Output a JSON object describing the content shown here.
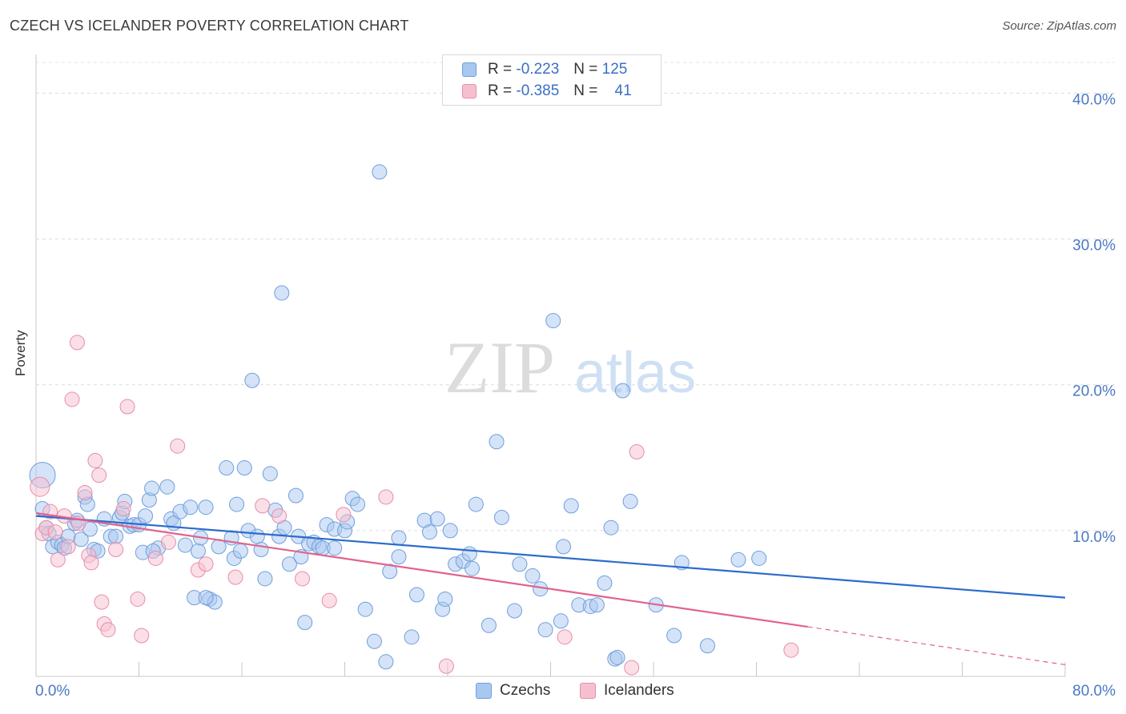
{
  "title": "CZECH VS ICELANDER POVERTY CORRELATION CHART",
  "source": "Source: ZipAtlas.com",
  "watermark": {
    "zip": "ZIP",
    "atlas": "atlas"
  },
  "legend": {
    "rows": [
      {
        "r_label": "R =",
        "r_value": "-0.223",
        "n_label": "N =",
        "n_value": "125"
      },
      {
        "r_label": "R =",
        "r_value": "-0.385",
        "n_label": "N =",
        "n_value": "41"
      }
    ]
  },
  "bottom_legend": {
    "czechs": "Czechs",
    "icelanders": "Icelanders"
  },
  "colors": {
    "czech_fill": "#a9c8f0",
    "czech_stroke": "#6f9fdc",
    "czech_line": "#2b6ccc",
    "iceland_fill": "#f6bfd0",
    "iceland_stroke": "#e78daa",
    "iceland_line": "#e0628f",
    "axis_text": "#4a78c2"
  },
  "chart_data": {
    "type": "scatter",
    "title": "CZECH VS ICELANDER POVERTY CORRELATION CHART",
    "xlabel": "",
    "ylabel": "Poverty",
    "xlim": [
      0,
      80
    ],
    "ylim": [
      0,
      42
    ],
    "x_tick_labels": [
      "0.0%",
      "80.0%"
    ],
    "y_ticks": [
      10,
      20,
      30,
      40
    ],
    "y_tick_labels": [
      "10.0%",
      "20.0%",
      "30.0%",
      "40.0%"
    ],
    "series": [
      {
        "name": "Czechs",
        "R": -0.223,
        "N": 125,
        "trend": {
          "x": [
            0,
            80
          ],
          "y": [
            11.0,
            5.4
          ],
          "dashed_from": null
        },
        "points": [
          [
            0.5,
            13.8
          ],
          [
            0.5,
            11.5
          ],
          [
            0.8,
            10.2
          ],
          [
            1,
            9.8
          ],
          [
            1.3,
            8.9
          ],
          [
            1.7,
            9.2
          ],
          [
            2,
            9.0
          ],
          [
            2.2,
            8.8
          ],
          [
            2.5,
            9.6
          ],
          [
            3,
            10.5
          ],
          [
            3.2,
            10.7
          ],
          [
            3.5,
            9.4
          ],
          [
            3.8,
            12.3
          ],
          [
            4,
            11.8
          ],
          [
            4.2,
            10.1
          ],
          [
            4.5,
            8.7
          ],
          [
            4.8,
            8.6
          ],
          [
            5.3,
            10.8
          ],
          [
            5.8,
            9.6
          ],
          [
            6.2,
            9.6
          ],
          [
            6.5,
            10.9
          ],
          [
            6.7,
            11.2
          ],
          [
            6.9,
            12.0
          ],
          [
            7.3,
            10.3
          ],
          [
            7.6,
            10.4
          ],
          [
            8,
            10.4
          ],
          [
            8.3,
            8.5
          ],
          [
            8.5,
            11.0
          ],
          [
            8.8,
            12.1
          ],
          [
            9.0,
            12.9
          ],
          [
            9.5,
            8.8
          ],
          [
            10.2,
            13.0
          ],
          [
            10.5,
            10.8
          ],
          [
            10.7,
            10.5
          ],
          [
            11.2,
            11.3
          ],
          [
            11.6,
            9.0
          ],
          [
            12,
            11.6
          ],
          [
            12.3,
            5.4
          ],
          [
            12.6,
            8.6
          ],
          [
            12.8,
            9.5
          ],
          [
            13.2,
            11.6
          ],
          [
            13.5,
            5.3
          ],
          [
            13.9,
            5.1
          ],
          [
            14.2,
            8.9
          ],
          [
            14.8,
            14.3
          ],
          [
            15.2,
            9.5
          ],
          [
            15.4,
            8.1
          ],
          [
            15.6,
            11.8
          ],
          [
            15.9,
            8.6
          ],
          [
            16.2,
            14.3
          ],
          [
            16.5,
            10.0
          ],
          [
            16.8,
            20.3
          ],
          [
            17.2,
            9.6
          ],
          [
            17.5,
            8.7
          ],
          [
            17.8,
            6.7
          ],
          [
            18.2,
            13.9
          ],
          [
            18.6,
            11.4
          ],
          [
            18.9,
            9.6
          ],
          [
            19.1,
            26.3
          ],
          [
            19.3,
            10.2
          ],
          [
            19.7,
            7.7
          ],
          [
            20.2,
            12.4
          ],
          [
            20.4,
            9.6
          ],
          [
            20.6,
            8.2
          ],
          [
            20.9,
            3.7
          ],
          [
            21.2,
            9.1
          ],
          [
            21.6,
            9.2
          ],
          [
            22,
            8.9
          ],
          [
            22.3,
            8.8
          ],
          [
            22.6,
            10.4
          ],
          [
            23.2,
            10.1
          ],
          [
            24,
            10.0
          ],
          [
            24.2,
            10.6
          ],
          [
            24.6,
            12.2
          ],
          [
            25.0,
            11.8
          ],
          [
            25.6,
            4.6
          ],
          [
            26.3,
            2.4
          ],
          [
            26.7,
            34.6
          ],
          [
            27.2,
            1.0
          ],
          [
            27.5,
            7.2
          ],
          [
            28.2,
            8.2
          ],
          [
            28.2,
            9.5
          ],
          [
            29.2,
            2.7
          ],
          [
            29.6,
            5.6
          ],
          [
            30.2,
            10.7
          ],
          [
            30.6,
            9.9
          ],
          [
            31.2,
            10.8
          ],
          [
            31.6,
            4.6
          ],
          [
            31.8,
            5.3
          ],
          [
            32.2,
            10.0
          ],
          [
            32.6,
            7.7
          ],
          [
            33.2,
            7.9
          ],
          [
            33.7,
            8.4
          ],
          [
            33.9,
            7.4
          ],
          [
            34.2,
            11.8
          ],
          [
            35.2,
            3.5
          ],
          [
            35.8,
            16.1
          ],
          [
            36.2,
            10.9
          ],
          [
            37.2,
            4.5
          ],
          [
            38.6,
            6.9
          ],
          [
            39.2,
            6.0
          ],
          [
            39.6,
            3.2
          ],
          [
            40.2,
            24.4
          ],
          [
            40.8,
            3.8
          ],
          [
            41.0,
            8.9
          ],
          [
            41.6,
            11.7
          ],
          [
            42.2,
            4.9
          ],
          [
            43.1,
            4.8
          ],
          [
            43.6,
            4.9
          ],
          [
            44.2,
            6.4
          ],
          [
            44.7,
            10.2
          ],
          [
            45.0,
            1.2
          ],
          [
            45.2,
            1.3
          ],
          [
            45.6,
            19.6
          ],
          [
            46.2,
            12.0
          ],
          [
            48.2,
            4.9
          ],
          [
            49.6,
            2.8
          ],
          [
            50.2,
            7.8
          ],
          [
            52.2,
            2.1
          ],
          [
            54.6,
            8.0
          ],
          [
            56.2,
            8.1
          ],
          [
            13.2,
            5.4
          ],
          [
            9.1,
            8.6
          ],
          [
            23.2,
            8.8
          ],
          [
            37.6,
            7.7
          ]
        ]
      },
      {
        "name": "Icelanders",
        "R": -0.385,
        "N": 41,
        "trend": {
          "x": [
            0,
            80
          ],
          "y": [
            11.2,
            0.8
          ],
          "dashed_from": 60
        },
        "points": [
          [
            0.3,
            13.0
          ],
          [
            0.5,
            9.8
          ],
          [
            0.8,
            10.2
          ],
          [
            1.1,
            11.3
          ],
          [
            1.5,
            9.9
          ],
          [
            1.7,
            8.0
          ],
          [
            2.2,
            11.0
          ],
          [
            2.5,
            8.9
          ],
          [
            2.8,
            19.0
          ],
          [
            3.2,
            22.9
          ],
          [
            3.3,
            10.5
          ],
          [
            3.8,
            12.6
          ],
          [
            4.1,
            8.3
          ],
          [
            4.3,
            7.8
          ],
          [
            4.6,
            14.8
          ],
          [
            4.9,
            13.8
          ],
          [
            5.1,
            5.1
          ],
          [
            5.3,
            3.6
          ],
          [
            5.6,
            3.2
          ],
          [
            6.2,
            8.7
          ],
          [
            6.8,
            11.5
          ],
          [
            7.1,
            18.5
          ],
          [
            7.9,
            5.3
          ],
          [
            8.2,
            2.8
          ],
          [
            9.3,
            8.1
          ],
          [
            10.3,
            9.2
          ],
          [
            11.0,
            15.8
          ],
          [
            12.6,
            7.3
          ],
          [
            13.2,
            7.7
          ],
          [
            15.5,
            6.8
          ],
          [
            17.6,
            11.7
          ],
          [
            18.9,
            11.0
          ],
          [
            20.7,
            6.7
          ],
          [
            22.8,
            5.2
          ],
          [
            23.9,
            11.1
          ],
          [
            27.2,
            12.3
          ],
          [
            31.9,
            0.7
          ],
          [
            41.1,
            2.7
          ],
          [
            46.3,
            0.6
          ],
          [
            46.7,
            15.4
          ],
          [
            58.7,
            1.8
          ]
        ]
      }
    ]
  }
}
